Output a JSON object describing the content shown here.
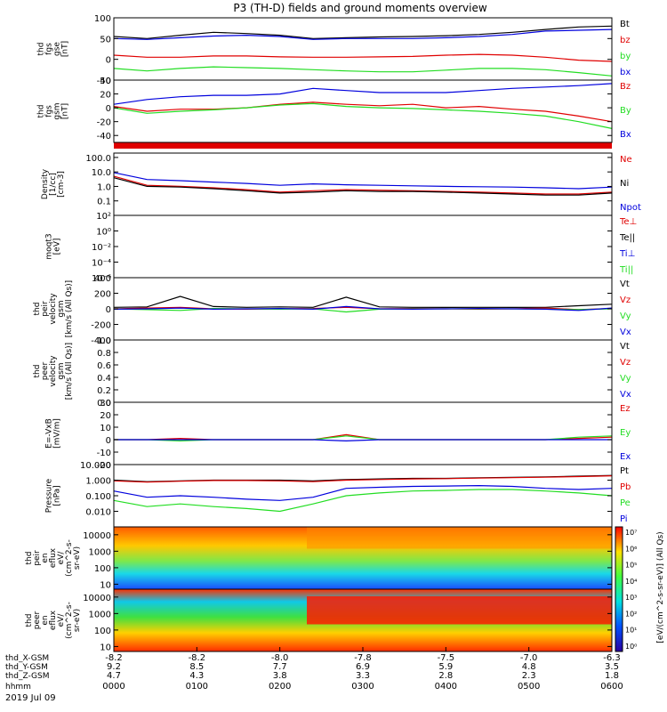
{
  "title": "P3 (TH-D) fields and ground moments overview",
  "date": "2019 Jul 09",
  "colors": {
    "black": "#000000",
    "red": "#e00000",
    "green": "#22dd22",
    "blue": "#0000dd"
  },
  "time": {
    "labels": [
      "hhmm",
      "thd_X-GSM",
      "thd_Y-GSM",
      "thd_Z-GSM"
    ],
    "ticks": [
      {
        "x": "-8.2",
        "y": "9.2",
        "z": "4.7",
        "hhmm": "0000"
      },
      {
        "x": "-8.2",
        "y": "8.5",
        "z": "4.3",
        "hhmm": "0100"
      },
      {
        "x": "-8.0",
        "y": "7.7",
        "z": "3.8",
        "hhmm": "0200"
      },
      {
        "x": "-7.8",
        "y": "6.9",
        "z": "3.3",
        "hhmm": "0300"
      },
      {
        "x": "-7.5",
        "y": "5.9",
        "z": "2.8",
        "hhmm": "0400"
      },
      {
        "x": "-7.0",
        "y": "4.8",
        "z": "2.3",
        "hhmm": "0500"
      },
      {
        "x": "-6.3",
        "y": "3.5",
        "z": "1.8",
        "hhmm": "0600"
      }
    ]
  },
  "chart_data": [
    {
      "type": "line",
      "id": "fgs",
      "ylabel": [
        "thd",
        "fgs",
        "gse",
        "[nT]"
      ],
      "yscale": "linear",
      "ylim": [
        -50,
        100
      ],
      "yticks": [
        "-50",
        "0",
        "50",
        "100"
      ],
      "series": [
        {
          "name": "Bt",
          "color": "black",
          "values": [
            55,
            50,
            58,
            65,
            62,
            58,
            50,
            52,
            54,
            55,
            57,
            60,
            65,
            72,
            78,
            80
          ]
        },
        {
          "name": "bz",
          "color": "red",
          "values": [
            10,
            5,
            5,
            8,
            8,
            6,
            5,
            5,
            6,
            7,
            10,
            12,
            10,
            5,
            -2,
            -5
          ]
        },
        {
          "name": "by",
          "color": "green",
          "values": [
            -22,
            -28,
            -22,
            -18,
            -20,
            -22,
            -25,
            -28,
            -30,
            -30,
            -26,
            -22,
            -22,
            -25,
            -32,
            -40
          ]
        },
        {
          "name": "bx",
          "color": "blue",
          "values": [
            50,
            48,
            52,
            56,
            58,
            55,
            48,
            50,
            50,
            50,
            52,
            55,
            60,
            68,
            70,
            72
          ]
        }
      ]
    },
    {
      "type": "line",
      "id": "fgs_gsm",
      "ylabel": [
        "thd",
        "fgs",
        "gsm",
        "[nT]"
      ],
      "yscale": "linear",
      "ylim": [
        -50,
        40
      ],
      "yticks": [
        "-40",
        "-20",
        "0",
        "20",
        "40"
      ],
      "series": [
        {
          "name": "Bz",
          "color": "red",
          "values": [
            2,
            -5,
            -2,
            -2,
            0,
            5,
            8,
            5,
            3,
            5,
            0,
            2,
            -2,
            -5,
            -12,
            -20
          ]
        },
        {
          "name": "By",
          "color": "green",
          "values": [
            0,
            -8,
            -5,
            -3,
            0,
            4,
            6,
            2,
            0,
            -1,
            -3,
            -5,
            -8,
            -12,
            -20,
            -30
          ]
        },
        {
          "name": "Bx",
          "color": "blue",
          "values": [
            5,
            12,
            16,
            18,
            18,
            20,
            28,
            25,
            22,
            22,
            22,
            25,
            28,
            30,
            32,
            35
          ]
        }
      ]
    },
    {
      "type": "line",
      "id": "density",
      "ylabel": [
        "Density",
        "[1/cc]",
        "[cm-3]"
      ],
      "yscale": "log",
      "ylim": [
        0.01,
        200
      ],
      "yticks": [
        "0.1",
        "1.0",
        "10.0",
        "100.0"
      ],
      "series": [
        {
          "name": "Ne",
          "color": "red",
          "values": [
            5,
            1.2,
            1.0,
            0.8,
            0.6,
            0.4,
            0.5,
            0.6,
            0.55,
            0.5,
            0.45,
            0.4,
            0.35,
            0.3,
            0.3,
            0.4
          ]
        },
        {
          "name": "Ni",
          "color": "black",
          "values": [
            4,
            1.0,
            0.9,
            0.7,
            0.5,
            0.35,
            0.4,
            0.5,
            0.45,
            0.45,
            0.4,
            0.35,
            0.3,
            0.25,
            0.25,
            0.35
          ]
        },
        {
          "name": "Npot",
          "color": "blue",
          "values": [
            9,
            3,
            2.5,
            2.0,
            1.6,
            1.2,
            1.5,
            1.3,
            1.2,
            1.1,
            1.0,
            0.95,
            0.9,
            0.8,
            0.7,
            0.9
          ]
        }
      ]
    },
    {
      "type": "line",
      "id": "temp",
      "ylabel": [
        "moqt3",
        "[eV]"
      ],
      "yscale": "log",
      "ylim": [
        1e-06,
        100
      ],
      "yticks": [
        "10⁻⁶",
        "10⁻⁴",
        "10⁻²",
        "10⁰",
        "10²"
      ],
      "series": [
        {
          "name": "Te⊥",
          "color": "red",
          "values": []
        },
        {
          "name": "Te||",
          "color": "black",
          "values": []
        },
        {
          "name": "Ti⊥",
          "color": "blue",
          "values": []
        },
        {
          "name": "Ti||",
          "color": "green",
          "values": []
        }
      ]
    },
    {
      "type": "line",
      "id": "peir_vel",
      "ylabel": [
        "thd",
        "peir",
        "velocity",
        "gsm",
        "[km/s (All Qs)]"
      ],
      "yscale": "linear",
      "ylim": [
        -400,
        400
      ],
      "yticks": [
        "-400",
        "-200",
        "0",
        "200",
        "400"
      ],
      "series": [
        {
          "name": "Vt",
          "color": "black",
          "values": [
            20,
            25,
            160,
            30,
            20,
            25,
            20,
            150,
            25,
            20,
            18,
            20,
            18,
            20,
            40,
            60
          ]
        },
        {
          "name": "Vz",
          "color": "red",
          "values": [
            0,
            10,
            20,
            0,
            -5,
            0,
            5,
            20,
            0,
            5,
            0,
            -5,
            0,
            10,
            -10,
            5
          ]
        },
        {
          "name": "Vy",
          "color": "green",
          "values": [
            0,
            -10,
            -20,
            5,
            0,
            -5,
            0,
            -40,
            -5,
            0,
            0,
            0,
            0,
            -5,
            -10,
            0
          ]
        },
        {
          "name": "Vx",
          "color": "blue",
          "values": [
            -5,
            0,
            10,
            -5,
            0,
            5,
            -5,
            30,
            0,
            -5,
            0,
            5,
            0,
            -5,
            -20,
            10
          ]
        }
      ]
    },
    {
      "type": "line",
      "id": "peer_vel",
      "ylabel": [
        "thd",
        "peer",
        "velocity",
        "gsm",
        "[km/s (All Qs)]"
      ],
      "yscale": "linear",
      "ylim": [
        0,
        1
      ],
      "yticks": [
        "0.0",
        "0.2",
        "0.4",
        "0.6",
        "0.8",
        "1.0"
      ],
      "series": [
        {
          "name": "Vt",
          "color": "black",
          "values": []
        },
        {
          "name": "Vz",
          "color": "red",
          "values": []
        },
        {
          "name": "Vy",
          "color": "green",
          "values": []
        },
        {
          "name": "Vx",
          "color": "blue",
          "values": []
        }
      ]
    },
    {
      "type": "line",
      "id": "efield",
      "ylabel": [
        "E=-VxB",
        "[mV/m]"
      ],
      "yscale": "linear",
      "ylim": [
        -20,
        30
      ],
      "yticks": [
        "-20",
        "-10",
        "0",
        "10",
        "20",
        "30"
      ],
      "series": [
        {
          "name": "Ez",
          "color": "red",
          "values": [
            0,
            0,
            1,
            0,
            0,
            0,
            0,
            4,
            0,
            0,
            0,
            0,
            0,
            0,
            1,
            2
          ]
        },
        {
          "name": "Ey",
          "color": "green",
          "values": [
            0,
            0,
            -1,
            0,
            0,
            0,
            0,
            3,
            0,
            0,
            0,
            0,
            0,
            0,
            2,
            3
          ]
        },
        {
          "name": "Ex",
          "color": "blue",
          "values": [
            0,
            0,
            0,
            0,
            0,
            0,
            0,
            -1,
            0,
            0,
            0,
            0,
            0,
            0,
            0,
            0
          ]
        }
      ]
    },
    {
      "type": "line",
      "id": "pressure",
      "ylabel": [
        "Pressure",
        "[nPa]"
      ],
      "yscale": "log",
      "ylim": [
        0.001,
        10
      ],
      "yticks": [
        "0.010",
        "0.100",
        "1.000",
        "10.000"
      ],
      "series": [
        {
          "name": "Pt",
          "color": "black",
          "values": [
            1.0,
            0.8,
            0.9,
            1.0,
            1.0,
            1.0,
            0.9,
            1.1,
            1.2,
            1.3,
            1.3,
            1.4,
            1.5,
            1.6,
            1.8,
            2.0
          ]
        },
        {
          "name": "Pb",
          "color": "red",
          "values": [
            0.9,
            0.75,
            0.85,
            0.95,
            0.95,
            0.9,
            0.8,
            1.0,
            1.1,
            1.2,
            1.25,
            1.35,
            1.45,
            1.55,
            1.7,
            1.9
          ]
        },
        {
          "name": "Pe",
          "color": "green",
          "values": [
            0.05,
            0.02,
            0.03,
            0.02,
            0.015,
            0.01,
            0.03,
            0.1,
            0.15,
            0.2,
            0.22,
            0.25,
            0.25,
            0.2,
            0.15,
            0.1
          ]
        },
        {
          "name": "Pi",
          "color": "blue",
          "values": [
            0.2,
            0.08,
            0.1,
            0.08,
            0.06,
            0.05,
            0.08,
            0.3,
            0.35,
            0.4,
            0.42,
            0.45,
            0.4,
            0.3,
            0.25,
            0.3
          ]
        }
      ]
    },
    {
      "type": "heatmap",
      "id": "peir_eflux",
      "ylabel": [
        "thd",
        "peir",
        "en",
        "eflux",
        "eV/",
        "(cm^2-s-",
        "sr-eV)"
      ],
      "yscale": "log",
      "ylim": [
        5,
        30000
      ],
      "yticks": [
        "10",
        "100",
        "1000",
        "10000"
      ]
    },
    {
      "type": "heatmap",
      "id": "peer_eflux",
      "ylabel": [
        "thd",
        "peer",
        "en",
        "eflux",
        "eV/",
        "(cm^2-s-",
        "sr-eV)"
      ],
      "yscale": "log",
      "ylim": [
        5,
        30000
      ],
      "yticks": [
        "10",
        "100",
        "1000",
        "10000"
      ]
    }
  ],
  "colorbar": {
    "ticks": [
      "10⁷",
      "10⁶",
      "10⁵",
      "10⁴",
      "10³",
      "10²",
      "10¹",
      "10⁰"
    ],
    "label": "[eV/(cm^2-s-sr-eV)] (All Qs)"
  }
}
